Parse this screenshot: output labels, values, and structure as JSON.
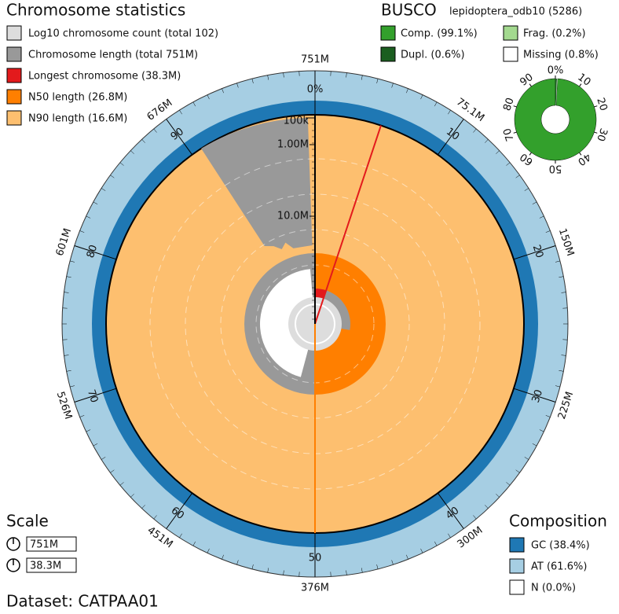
{
  "stats": {
    "title": "Chromosome statistics",
    "legend": [
      "Log10 chromosome count (total 102)",
      "Chromosome length (total 751M)",
      "Longest chromosome (38.3M)",
      "N50 length (26.8M)",
      "N90 length (16.6M)"
    ]
  },
  "busco": {
    "title": "BUSCO",
    "lineage": "lepidoptera_odb10 (5286)",
    "legend": [
      "Comp. (99.1%)",
      "Dupl. (0.6%)",
      "Frag. (0.2%)",
      "Missing (0.8%)"
    ],
    "ticks": [
      "0%",
      "10",
      "20",
      "30",
      "40",
      "50",
      "60",
      "70",
      "80",
      "90"
    ]
  },
  "outer_ticks": [
    "751M",
    "75.1M",
    "150M",
    "225M",
    "300M",
    "376M",
    "451M",
    "526M",
    "601M",
    "676M"
  ],
  "inner_ticks": [
    "0%",
    "10",
    "20",
    "30",
    "40",
    "50",
    "60",
    "70",
    "80",
    "90"
  ],
  "radial_ticks": [
    "100k",
    "1.00M",
    "10.0M"
  ],
  "scale": {
    "title": "Scale",
    "values": [
      "751M",
      "38.3M"
    ]
  },
  "composition": {
    "title": "Composition",
    "legend": [
      "GC (38.4%)",
      "AT (61.6%)",
      "N (0.0%)"
    ]
  },
  "dataset": "Dataset: CATPAA01"
}
